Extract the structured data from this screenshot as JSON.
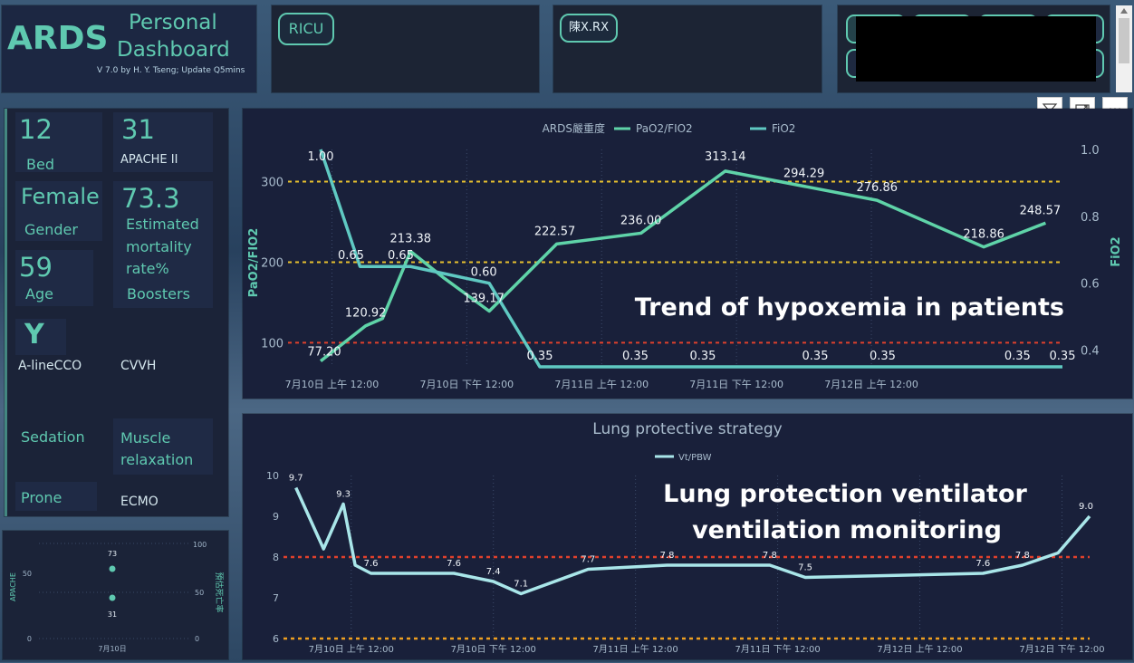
{
  "header": {
    "logo": "ARDS",
    "title_line1": "Personal",
    "title_line2": "Dashboard",
    "version": "V 7.0 by H. Y. Tseng; Update Q5mins",
    "slicer_ricu": "RICU",
    "slicer_name": "陳X.RX"
  },
  "patient": {
    "bed_value": "12",
    "bed_label": "Bed",
    "apache_value": "31",
    "apache_label": "APACHE II",
    "gender_value": "Female",
    "gender_label": "Gender",
    "mortality_value": "73.3",
    "mortality_label_1": "Estimated",
    "mortality_label_2": "mortality",
    "mortality_label_3": "rate%",
    "age_value": "59",
    "age_label": "Age",
    "boosters_label": "Boosters",
    "aline_value": "Y",
    "aline_label": "A-lineCCO",
    "cvvh_label": "CVVH",
    "sedation_label": "Sedation",
    "muscle_label_1": "Muscle",
    "muscle_label_2": "relaxation",
    "prone_label": "Prone",
    "ecmo_label": "ECMO"
  },
  "mini_chart": {
    "left_axis_title": "APACHE",
    "right_axis_title": "預估死亡率",
    "left_ticks": [
      "0",
      "50"
    ],
    "right_ticks": [
      "0",
      "50",
      "100"
    ],
    "points": [
      {
        "label": "73",
        "value": 73
      },
      {
        "label": "31",
        "value": 31
      }
    ],
    "x_label": "7月10日"
  },
  "annotations": {
    "chart1_note": "Trend of hypoxemia in patients",
    "chart2_note_line1": "Lung protection ventilator",
    "chart2_note_line2": "ventilation monitoring"
  },
  "colors": {
    "pf_line": "#5fd3a8",
    "fio2_line": "#5fc9c2",
    "vt_line": "#a9e6e9",
    "ref_yellow": "#e7c12f",
    "ref_red": "#e0402c",
    "ref_orange": "#f0a020"
  },
  "chart_data": [
    {
      "type": "line",
      "title": "ARDS嚴重度",
      "ylabel": "PaO2/FIO2",
      "y2label": "FiO2",
      "x_ticks": [
        "7月10日 上午 12:00",
        "7月10日 下午 12:00",
        "7月11日 上午 12:00",
        "7月11日 下午 12:00",
        "7月12日 上午 12:00"
      ],
      "ylim": [
        70,
        340
      ],
      "y_ticks": [
        "100",
        "200",
        "300"
      ],
      "y2lim": [
        0.35,
        1.0
      ],
      "y2_ticks": [
        "0.4",
        "0.6",
        "0.8",
        "1.0"
      ],
      "reference_lines": [
        {
          "axis": "y",
          "value": 300
        },
        {
          "axis": "y",
          "value": 200
        },
        {
          "axis": "y",
          "value": 100
        }
      ],
      "series": [
        {
          "name": "PaO2/FIO2",
          "axis": "left",
          "points": [
            {
              "x": "2023-07-09T14:00",
              "y": 77.2,
              "label": "77.20"
            },
            {
              "x": "2023-07-09T22:00",
              "y": 120.92,
              "label": "120.92"
            },
            {
              "x": "2023-07-10T01:00",
              "y": 130
            },
            {
              "x": "2023-07-10T06:00",
              "y": 213.38,
              "label": "213.38"
            },
            {
              "x": "2023-07-10T12:00",
              "y": 180
            },
            {
              "x": "2023-07-10T20:00",
              "y": 139.17,
              "label": "139.17"
            },
            {
              "x": "2023-07-11T08:00",
              "y": 222.57,
              "label": "222.57"
            },
            {
              "x": "2023-07-11T23:00",
              "y": 236.0,
              "label": "236.00"
            },
            {
              "x": "2023-07-12T14:00",
              "y": 313.14,
              "label": "313.14"
            },
            {
              "x": "2023-07-13T04:00",
              "y": 294.29,
              "label": "294.29"
            },
            {
              "x": "2023-07-13T17:00",
              "y": 276.86,
              "label": "276.86"
            },
            {
              "x": "2023-07-14T12:00",
              "y": 218.86,
              "label": "218.86"
            },
            {
              "x": "2023-07-14T23:00",
              "y": 248.57,
              "label": "248.57"
            }
          ]
        },
        {
          "name": "FiO2",
          "axis": "right",
          "points": [
            {
              "x": "2023-07-09T14:00",
              "y": 1.0,
              "label": "1.00"
            },
            {
              "x": "2023-07-09T21:00",
              "y": 0.65,
              "label": "0.65"
            },
            {
              "x": "2023-07-10T02:00",
              "y": 0.65,
              "label": "0.65"
            },
            {
              "x": "2023-07-10T06:00",
              "y": 0.65
            },
            {
              "x": "2023-07-10T20:00",
              "y": 0.6,
              "label": "0.60"
            },
            {
              "x": "2023-07-11T05:00",
              "y": 0.35,
              "label": "0.35"
            },
            {
              "x": "2023-07-11T22:00",
              "y": 0.35,
              "label": "0.35"
            },
            {
              "x": "2023-07-12T10:00",
              "y": 0.35,
              "label": "0.35"
            },
            {
              "x": "2023-07-13T06:00",
              "y": 0.35,
              "label": "0.35"
            },
            {
              "x": "2023-07-13T18:00",
              "y": 0.35,
              "label": "0.35"
            },
            {
              "x": "2023-07-14T18:00",
              "y": 0.35,
              "label": "0.35"
            },
            {
              "x": "2023-07-15T02:00",
              "y": 0.35,
              "label": "0.35"
            }
          ]
        }
      ]
    },
    {
      "type": "line",
      "title": "Lung protective strategy",
      "legend": [
        "Vt/PBW"
      ],
      "x_ticks": [
        "7月10日 上午 12:00",
        "7月10日 下午 12:00",
        "7月11日 上午 12:00",
        "7月11日 下午 12:00",
        "7月12日 上午 12:00",
        "7月12日 下午 12:00"
      ],
      "ylim": [
        6,
        10
      ],
      "y_ticks": [
        "6",
        "7",
        "8",
        "9",
        "10"
      ],
      "reference_lines": [
        {
          "axis": "y",
          "value": 8
        },
        {
          "axis": "y",
          "value": 6
        }
      ],
      "series": [
        {
          "name": "Vt/PBW",
          "points": [
            {
              "x": "2023-07-09T21:00",
              "y": 9.7,
              "label": "9.7"
            },
            {
              "x": "2023-07-10T04:00",
              "y": 8.2
            },
            {
              "x": "2023-07-10T09:00",
              "y": 9.3,
              "label": "9.3"
            },
            {
              "x": "2023-07-10T12:00",
              "y": 7.8
            },
            {
              "x": "2023-07-10T16:00",
              "y": 7.6,
              "label": "7.6"
            },
            {
              "x": "2023-07-11T13:00",
              "y": 7.6,
              "label": "7.6"
            },
            {
              "x": "2023-07-11T23:00",
              "y": 7.4,
              "label": "7.4"
            },
            {
              "x": "2023-07-12T06:00",
              "y": 7.1,
              "label": "7.1"
            },
            {
              "x": "2023-07-12T23:00",
              "y": 7.7,
              "label": "7.7"
            },
            {
              "x": "2023-07-13T19:00",
              "y": 7.8,
              "label": "7.8"
            },
            {
              "x": "2023-07-14T21:00",
              "y": 7.8,
              "label": "7.8"
            },
            {
              "x": "2023-07-15T06:00",
              "y": 7.5,
              "label": "7.5"
            },
            {
              "x": "2023-07-17T03:00",
              "y": 7.6,
              "label": "7.6"
            },
            {
              "x": "2023-07-17T13:00",
              "y": 7.8,
              "label": "7.8"
            },
            {
              "x": "2023-07-17T22:00",
              "y": 8.1
            },
            {
              "x": "2023-07-18T06:00",
              "y": 9.0,
              "label": "9.0"
            }
          ]
        }
      ]
    }
  ]
}
